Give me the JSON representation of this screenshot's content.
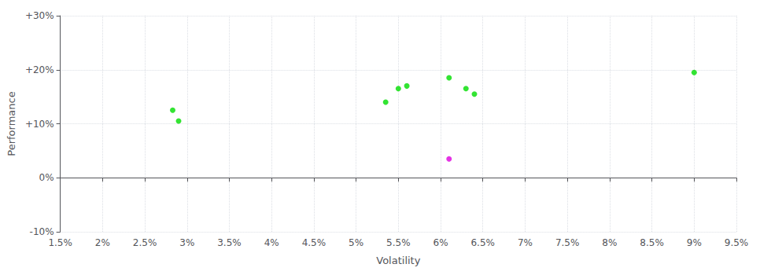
{
  "chart_data": {
    "type": "scatter",
    "xlabel": "Volatility",
    "ylabel": "Performance",
    "series": [
      {
        "color": "#00dd00",
        "marker": "circle",
        "x": [
          2.83,
          2.9,
          5.35,
          5.5,
          5.6,
          6.1,
          6.3,
          6.4,
          9.0
        ],
        "values": [
          12.5,
          10.5,
          14.0,
          16.5,
          17.0,
          18.5,
          16.5,
          15.5,
          19.5
        ]
      },
      {
        "color": "#dd00dd",
        "marker": "circle",
        "x": [
          6.1
        ],
        "values": [
          3.5
        ]
      }
    ],
    "xlim": [
      1.5,
      9.5
    ],
    "xticks": [
      {
        "value": 1.5,
        "label": "1.5%"
      },
      {
        "value": 2.0,
        "label": "2%"
      },
      {
        "value": 2.5,
        "label": "2.5%"
      },
      {
        "value": 3.0,
        "label": "3%"
      },
      {
        "value": 3.5,
        "label": "3.5%"
      },
      {
        "value": 4.0,
        "label": "4%"
      },
      {
        "value": 4.5,
        "label": "4.5%"
      },
      {
        "value": 5.0,
        "label": "5%"
      },
      {
        "value": 5.5,
        "label": "5.5%"
      },
      {
        "value": 6.0,
        "label": "6%"
      },
      {
        "value": 6.5,
        "label": "6.5%"
      },
      {
        "value": 7.0,
        "label": "7%"
      },
      {
        "value": 7.5,
        "label": "7.5%"
      },
      {
        "value": 8.0,
        "label": "8%"
      },
      {
        "value": 8.5,
        "label": "8.5%"
      },
      {
        "value": 9.0,
        "label": "9%"
      },
      {
        "value": 9.5,
        "label": "9.5%"
      }
    ],
    "ylim": [
      -10,
      30
    ],
    "yticks": [
      {
        "value": -10,
        "label": "-10%"
      },
      {
        "value": 0,
        "label": "0%"
      },
      {
        "value": 10,
        "label": "+10%"
      },
      {
        "value": 20,
        "label": "+20%"
      },
      {
        "value": 30,
        "label": "+30%"
      }
    ],
    "grid": true
  }
}
